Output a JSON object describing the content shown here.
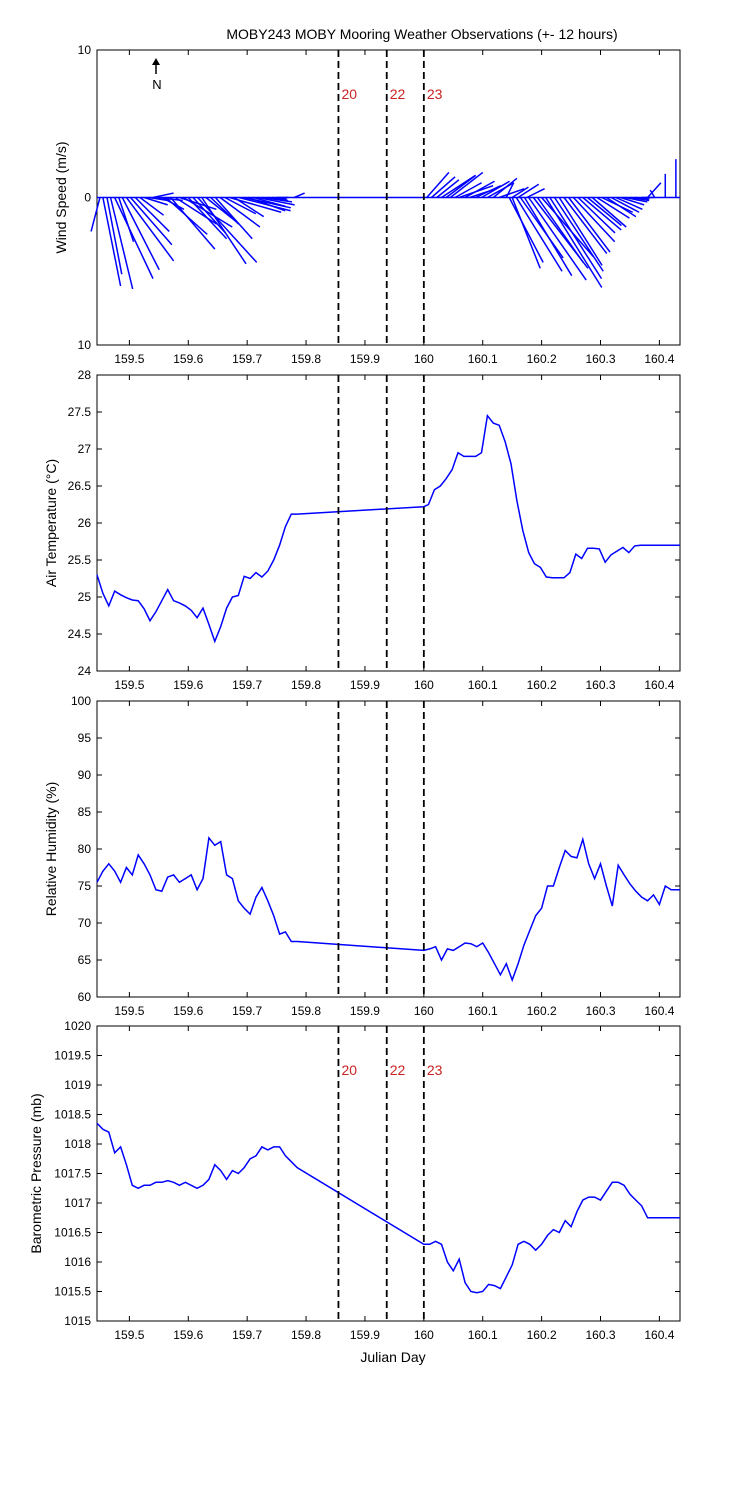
{
  "title": "MOBY243 MOBY Mooring Weather Observations (+- 12 hours)",
  "xlabel": "Julian Day",
  "north_label": "N",
  "colors": {
    "line": "#0000ff",
    "marker_text": "#cc2222",
    "axis": "#000000"
  },
  "markers": {
    "x": [
      159.855,
      159.937,
      160.0
    ],
    "labels": [
      "20",
      "22",
      "23"
    ]
  },
  "chart_data": [
    {
      "type": "line",
      "subtype": "wind-vector",
      "ylabel": "Wind Speed (m/s)",
      "xlim": [
        159.445,
        160.435
      ],
      "ylim": [
        -10,
        10
      ],
      "yticks": [
        -10,
        0,
        10
      ],
      "ytick_labels": [
        "10",
        "0",
        "10"
      ],
      "xticks": [
        159.5,
        159.6,
        159.7,
        159.8,
        159.9,
        160,
        160.1,
        160.2,
        160.3,
        160.4
      ],
      "xtick_labels": [
        "159.5",
        "159.6",
        "159.7",
        "159.8",
        "159.9",
        "160",
        "160.1",
        "160.2",
        "160.3",
        "160.4"
      ],
      "show_marker_labels": true,
      "note": "vectors: t = julian day, u = east component, v = north component (m/s)",
      "vectors": [
        {
          "t": 159.45,
          "u": -0.6,
          "v": -2.3
        },
        {
          "t": 159.455,
          "u": 1.2,
          "v": -6.0
        },
        {
          "t": 159.462,
          "u": 1.0,
          "v": -5.2
        },
        {
          "t": 159.468,
          "u": 1.5,
          "v": -6.2
        },
        {
          "t": 159.475,
          "u": 2.6,
          "v": -5.5
        },
        {
          "t": 159.482,
          "u": 1.0,
          "v": -3.0
        },
        {
          "t": 159.488,
          "u": 2.5,
          "v": -4.9
        },
        {
          "t": 159.495,
          "u": 3.2,
          "v": -4.3
        },
        {
          "t": 159.502,
          "u": 2.8,
          "v": -3.2
        },
        {
          "t": 159.51,
          "u": 2.3,
          "v": -2.3
        },
        {
          "t": 159.518,
          "u": 1.6,
          "v": -1.2
        },
        {
          "t": 159.525,
          "u": 1.6,
          "v": -0.5
        },
        {
          "t": 159.533,
          "u": 1.3,
          "v": -0.2
        },
        {
          "t": 159.54,
          "u": 1.4,
          "v": 0.3
        },
        {
          "t": 159.548,
          "u": 1.7,
          "v": -0.2
        },
        {
          "t": 159.555,
          "u": 1.5,
          "v": -0.8
        },
        {
          "t": 159.562,
          "u": 2.8,
          "v": -2.5
        },
        {
          "t": 159.57,
          "u": 3.0,
          "v": -3.5
        },
        {
          "t": 159.578,
          "u": 2.8,
          "v": -1.8
        },
        {
          "t": 159.585,
          "u": 2.5,
          "v": -0.8
        },
        {
          "t": 159.592,
          "u": 3.3,
          "v": -2.0
        },
        {
          "t": 159.6,
          "u": 2.6,
          "v": -2.8
        },
        {
          "t": 159.608,
          "u": 2.2,
          "v": -2.4
        },
        {
          "t": 159.616,
          "u": 4.0,
          "v": -4.4
        },
        {
          "t": 159.623,
          "u": 3.0,
          "v": -4.5
        },
        {
          "t": 159.63,
          "u": 2.0,
          "v": -1.6
        },
        {
          "t": 159.638,
          "u": 1.9,
          "v": -1.8
        },
        {
          "t": 159.646,
          "u": 2.5,
          "v": -2.8
        },
        {
          "t": 159.654,
          "u": 2.7,
          "v": -2.0
        },
        {
          "t": 159.662,
          "u": 2.1,
          "v": -1.1
        },
        {
          "t": 159.67,
          "u": 3.5,
          "v": -1.0
        },
        {
          "t": 159.678,
          "u": 2.0,
          "v": -1.3
        },
        {
          "t": 159.686,
          "u": 3.5,
          "v": -0.9
        },
        {
          "t": 159.694,
          "u": 3.2,
          "v": -0.7
        },
        {
          "t": 159.702,
          "u": 2.5,
          "v": -0.9
        },
        {
          "t": 159.71,
          "u": 2.2,
          "v": -0.6
        },
        {
          "t": 159.718,
          "u": 2.5,
          "v": -0.5
        },
        {
          "t": 159.726,
          "u": 2.0,
          "v": -0.3
        },
        {
          "t": 159.734,
          "u": 1.4,
          "v": -0.2
        },
        {
          "t": 159.742,
          "u": 1.0,
          "v": -0.1
        },
        {
          "t": 159.75,
          "u": 0.8,
          "v": 0.0
        },
        {
          "t": 159.78,
          "u": 0.7,
          "v": 0.3
        },
        {
          "t": 160.005,
          "u": 1.5,
          "v": 1.7
        },
        {
          "t": 160.013,
          "u": 1.6,
          "v": 1.4
        },
        {
          "t": 160.022,
          "u": 1.5,
          "v": 1.2
        },
        {
          "t": 160.03,
          "u": 2.3,
          "v": 1.5
        },
        {
          "t": 160.038,
          "u": 2.0,
          "v": 1.5
        },
        {
          "t": 160.045,
          "u": 2.2,
          "v": 1.7
        },
        {
          "t": 160.053,
          "u": 1.8,
          "v": 1.0
        },
        {
          "t": 160.06,
          "u": 2.3,
          "v": 0.8
        },
        {
          "t": 160.07,
          "u": 2.0,
          "v": 1.1
        },
        {
          "t": 160.078,
          "u": 1.8,
          "v": 0.6
        },
        {
          "t": 160.088,
          "u": 1.7,
          "v": 0.8
        },
        {
          "t": 160.098,
          "u": 1.9,
          "v": 1.1
        },
        {
          "t": 160.108,
          "u": 1.8,
          "v": 1.0
        },
        {
          "t": 160.118,
          "u": 1.6,
          "v": 1.3
        },
        {
          "t": 160.128,
          "u": 1.7,
          "v": 0.6
        },
        {
          "t": 160.14,
          "u": 0.5,
          "v": 1.0
        },
        {
          "t": 160.15,
          "u": 1.1,
          "v": 0.7
        },
        {
          "t": 160.16,
          "u": 1.4,
          "v": 0.9
        },
        {
          "t": 160.175,
          "u": 1.2,
          "v": 0.6
        },
        {
          "t": 160.145,
          "u": 2.3,
          "v": -4.4
        },
        {
          "t": 160.15,
          "u": 1.9,
          "v": -4.8
        },
        {
          "t": 160.157,
          "u": 3.1,
          "v": -5.0
        },
        {
          "t": 160.164,
          "u": 2.9,
          "v": -4.1
        },
        {
          "t": 160.171,
          "u": 3.2,
          "v": -5.3
        },
        {
          "t": 160.178,
          "u": 3.9,
          "v": -5.6
        },
        {
          "t": 160.186,
          "u": 3.7,
          "v": -4.8
        },
        {
          "t": 160.193,
          "u": 3.1,
          "v": -4.4
        },
        {
          "t": 160.2,
          "u": 3.5,
          "v": -4.0
        },
        {
          "t": 160.207,
          "u": 3.8,
          "v": -6.1
        },
        {
          "t": 160.214,
          "u": 3.5,
          "v": -5.5
        },
        {
          "t": 160.222,
          "u": 3.3,
          "v": -5.0
        },
        {
          "t": 160.23,
          "u": 2.9,
          "v": -4.6
        },
        {
          "t": 160.238,
          "u": 2.9,
          "v": -3.8
        },
        {
          "t": 160.246,
          "u": 2.8,
          "v": -3.7
        },
        {
          "t": 160.254,
          "u": 2.8,
          "v": -3.0
        },
        {
          "t": 160.262,
          "u": 2.5,
          "v": -2.4
        },
        {
          "t": 160.27,
          "u": 2.6,
          "v": -2.2
        },
        {
          "t": 160.278,
          "u": 2.3,
          "v": -1.9
        },
        {
          "t": 160.286,
          "u": 2.3,
          "v": -2.0
        },
        {
          "t": 160.294,
          "u": 2.2,
          "v": -1.4
        },
        {
          "t": 160.302,
          "u": 2.1,
          "v": -1.0
        },
        {
          "t": 160.31,
          "u": 2.0,
          "v": -1.3
        },
        {
          "t": 160.318,
          "u": 1.9,
          "v": -1.0
        },
        {
          "t": 160.326,
          "u": 1.8,
          "v": -0.8
        },
        {
          "t": 160.334,
          "u": 1.6,
          "v": -0.5
        },
        {
          "t": 160.342,
          "u": 1.5,
          "v": -0.3
        },
        {
          "t": 160.35,
          "u": 1.3,
          "v": -0.2
        },
        {
          "t": 160.358,
          "u": 1.0,
          "v": -0.1
        },
        {
          "t": 160.37,
          "u": 0.8,
          "v": 0.0
        },
        {
          "t": 160.38,
          "u": 0.9,
          "v": 1.0
        },
        {
          "t": 160.392,
          "u": -0.3,
          "v": 0.5
        },
        {
          "t": 160.41,
          "u": 0.0,
          "v": 1.6
        },
        {
          "t": 160.428,
          "u": 0.0,
          "v": 2.6
        }
      ]
    },
    {
      "type": "line",
      "ylabel": "Air Temperature (°C)",
      "xlim": [
        159.445,
        160.435
      ],
      "ylim": [
        24,
        28
      ],
      "yticks": [
        24,
        24.5,
        25,
        25.5,
        26,
        26.5,
        27,
        27.5,
        28
      ],
      "ytick_labels": [
        "24",
        "24.5",
        "25",
        "25.5",
        "26",
        "26.5",
        "27",
        "27.5",
        "28"
      ],
      "xticks": [
        159.5,
        159.6,
        159.7,
        159.8,
        159.9,
        160,
        160.1,
        160.2,
        160.3,
        160.4
      ],
      "xtick_labels": [
        "159.5",
        "159.6",
        "159.7",
        "159.8",
        "159.9",
        "160",
        "160.1",
        "160.2",
        "160.3",
        "160.4"
      ],
      "show_marker_labels": false,
      "x": [
        159.445,
        159.455,
        159.465,
        159.475,
        159.485,
        159.495,
        159.505,
        159.515,
        159.525,
        159.535,
        159.545,
        159.555,
        159.565,
        159.575,
        159.585,
        159.595,
        159.605,
        159.615,
        159.625,
        159.635,
        159.645,
        159.655,
        159.665,
        159.675,
        159.685,
        159.695,
        159.705,
        159.715,
        159.725,
        159.735,
        159.745,
        159.755,
        159.765,
        159.775,
        159.785,
        160.0,
        160.008,
        160.018,
        160.028,
        160.038,
        160.048,
        160.058,
        160.068,
        160.078,
        160.088,
        160.098,
        160.108,
        160.118,
        160.128,
        160.138,
        160.148,
        160.158,
        160.168,
        160.178,
        160.188,
        160.198,
        160.208,
        160.218,
        160.228,
        160.238,
        160.248,
        160.258,
        160.268,
        160.278,
        160.288,
        160.298,
        160.308,
        160.318,
        160.328,
        160.338,
        160.348,
        160.358,
        160.368,
        160.378,
        160.388,
        160.398,
        160.408,
        160.418,
        160.435
      ],
      "y": [
        25.3,
        25.05,
        24.88,
        25.08,
        25.03,
        24.99,
        24.96,
        24.95,
        24.84,
        24.68,
        24.8,
        24.95,
        25.1,
        24.95,
        24.92,
        24.88,
        24.82,
        24.72,
        24.85,
        24.63,
        24.4,
        24.6,
        24.85,
        25.0,
        25.02,
        25.28,
        25.25,
        25.33,
        25.27,
        25.35,
        25.5,
        25.7,
        25.95,
        26.12,
        26.12,
        26.22,
        26.25,
        26.45,
        26.5,
        26.6,
        26.72,
        26.95,
        26.9,
        26.9,
        26.9,
        26.95,
        27.45,
        27.35,
        27.32,
        27.1,
        26.8,
        26.3,
        25.9,
        25.6,
        25.45,
        25.4,
        25.27,
        25.26,
        25.26,
        25.26,
        25.33,
        25.58,
        25.52,
        25.66,
        25.66,
        25.65,
        25.47,
        25.57,
        25.62,
        25.67,
        25.6,
        25.69,
        25.7,
        25.7,
        25.7,
        25.7,
        25.7,
        25.7,
        25.7
      ]
    },
    {
      "type": "line",
      "ylabel": "Relative Humidity (%)",
      "xlim": [
        159.445,
        160.435
      ],
      "ylim": [
        60,
        100
      ],
      "yticks": [
        60,
        65,
        70,
        75,
        80,
        85,
        90,
        95,
        100
      ],
      "ytick_labels": [
        "60",
        "65",
        "70",
        "75",
        "80",
        "85",
        "90",
        "95",
        "100"
      ],
      "xticks": [
        159.5,
        159.6,
        159.7,
        159.8,
        159.9,
        160,
        160.1,
        160.2,
        160.3,
        160.4
      ],
      "xtick_labels": [
        "159.5",
        "159.6",
        "159.7",
        "159.8",
        "159.9",
        "160",
        "160.1",
        "160.2",
        "160.3",
        "160.4"
      ],
      "show_marker_labels": false,
      "x": [
        159.445,
        159.455,
        159.465,
        159.475,
        159.485,
        159.495,
        159.505,
        159.515,
        159.525,
        159.535,
        159.545,
        159.555,
        159.565,
        159.575,
        159.585,
        159.595,
        159.605,
        159.615,
        159.625,
        159.635,
        159.645,
        159.655,
        159.665,
        159.675,
        159.685,
        159.695,
        159.705,
        159.715,
        159.725,
        159.735,
        159.745,
        159.755,
        159.765,
        159.775,
        159.785,
        160.0,
        160.01,
        160.02,
        160.03,
        160.04,
        160.05,
        160.06,
        160.07,
        160.08,
        160.09,
        160.1,
        160.11,
        160.12,
        160.13,
        160.14,
        160.15,
        160.16,
        160.17,
        160.18,
        160.19,
        160.2,
        160.21,
        160.22,
        160.23,
        160.24,
        160.25,
        160.26,
        160.27,
        160.28,
        160.29,
        160.3,
        160.31,
        160.32,
        160.33,
        160.34,
        160.35,
        160.36,
        160.37,
        160.38,
        160.39,
        160.4,
        160.41,
        160.42,
        160.435
      ],
      "y": [
        75.5,
        77.0,
        78.0,
        77.0,
        75.5,
        77.5,
        76.5,
        79.2,
        78.0,
        76.5,
        74.5,
        74.3,
        76.2,
        76.5,
        75.5,
        76.0,
        76.5,
        74.5,
        76.0,
        81.5,
        80.5,
        81.0,
        76.5,
        76.0,
        73.0,
        72.0,
        71.2,
        73.5,
        74.8,
        73.0,
        71.0,
        68.5,
        68.8,
        67.5,
        67.5,
        66.3,
        66.5,
        66.8,
        65.0,
        66.5,
        66.3,
        66.8,
        67.3,
        67.2,
        66.8,
        67.3,
        66.0,
        64.5,
        63.0,
        64.5,
        62.3,
        64.5,
        67.0,
        69.0,
        71.0,
        72.0,
        75.0,
        75.0,
        77.5,
        79.8,
        79.0,
        78.8,
        81.3,
        78.0,
        76.0,
        78.0,
        75.0,
        72.3,
        77.8,
        76.5,
        75.3,
        74.3,
        73.5,
        73.0,
        73.8,
        72.5,
        75.0,
        74.5,
        74.5
      ]
    },
    {
      "type": "line",
      "ylabel": "Barometric Pressure (mb)",
      "xlim": [
        159.445,
        160.435
      ],
      "ylim": [
        1015,
        1020
      ],
      "yticks": [
        1015,
        1015.5,
        1016,
        1016.5,
        1017,
        1017.5,
        1018,
        1018.5,
        1019,
        1019.5,
        1020
      ],
      "ytick_labels": [
        "1015",
        "1015.5",
        "1016",
        "1016.5",
        "1017",
        "1017.5",
        "1018",
        "1018.5",
        "1019",
        "1019.5",
        "1020"
      ],
      "xticks": [
        159.5,
        159.6,
        159.7,
        159.8,
        159.9,
        160,
        160.1,
        160.2,
        160.3,
        160.4
      ],
      "xtick_labels": [
        "159.5",
        "159.6",
        "159.7",
        "159.8",
        "159.9",
        "160",
        "160.1",
        "160.2",
        "160.3",
        "160.4"
      ],
      "show_marker_labels": true,
      "x": [
        159.445,
        159.455,
        159.465,
        159.475,
        159.485,
        159.495,
        159.505,
        159.515,
        159.525,
        159.535,
        159.545,
        159.555,
        159.565,
        159.575,
        159.585,
        159.595,
        159.605,
        159.615,
        159.625,
        159.635,
        159.645,
        159.655,
        159.665,
        159.675,
        159.685,
        159.695,
        159.705,
        159.715,
        159.725,
        159.735,
        159.745,
        159.755,
        159.765,
        159.775,
        159.785,
        160.0,
        160.01,
        160.02,
        160.03,
        160.04,
        160.05,
        160.06,
        160.07,
        160.08,
        160.09,
        160.1,
        160.11,
        160.12,
        160.13,
        160.14,
        160.15,
        160.16,
        160.17,
        160.18,
        160.19,
        160.2,
        160.21,
        160.22,
        160.23,
        160.24,
        160.25,
        160.26,
        160.27,
        160.28,
        160.29,
        160.3,
        160.31,
        160.32,
        160.33,
        160.34,
        160.35,
        160.36,
        160.37,
        160.38,
        160.39,
        160.4,
        160.41,
        160.42,
        160.435
      ],
      "y": [
        1018.35,
        1018.25,
        1018.2,
        1017.85,
        1017.95,
        1017.65,
        1017.3,
        1017.25,
        1017.3,
        1017.3,
        1017.35,
        1017.35,
        1017.38,
        1017.35,
        1017.3,
        1017.35,
        1017.3,
        1017.25,
        1017.3,
        1017.4,
        1017.65,
        1017.55,
        1017.4,
        1017.55,
        1017.5,
        1017.6,
        1017.75,
        1017.8,
        1017.95,
        1017.9,
        1017.95,
        1017.95,
        1017.8,
        1017.7,
        1017.6,
        1016.3,
        1016.3,
        1016.35,
        1016.3,
        1016.0,
        1015.85,
        1016.05,
        1015.65,
        1015.5,
        1015.48,
        1015.5,
        1015.62,
        1015.6,
        1015.55,
        1015.75,
        1015.95,
        1016.3,
        1016.35,
        1016.3,
        1016.2,
        1016.3,
        1016.45,
        1016.55,
        1016.5,
        1016.7,
        1016.6,
        1016.85,
        1017.05,
        1017.1,
        1017.1,
        1017.05,
        1017.2,
        1017.35,
        1017.35,
        1017.3,
        1017.15,
        1017.05,
        1016.95,
        1016.75,
        1016.75,
        1016.75,
        1016.75,
        1016.75,
        1016.75
      ]
    }
  ]
}
